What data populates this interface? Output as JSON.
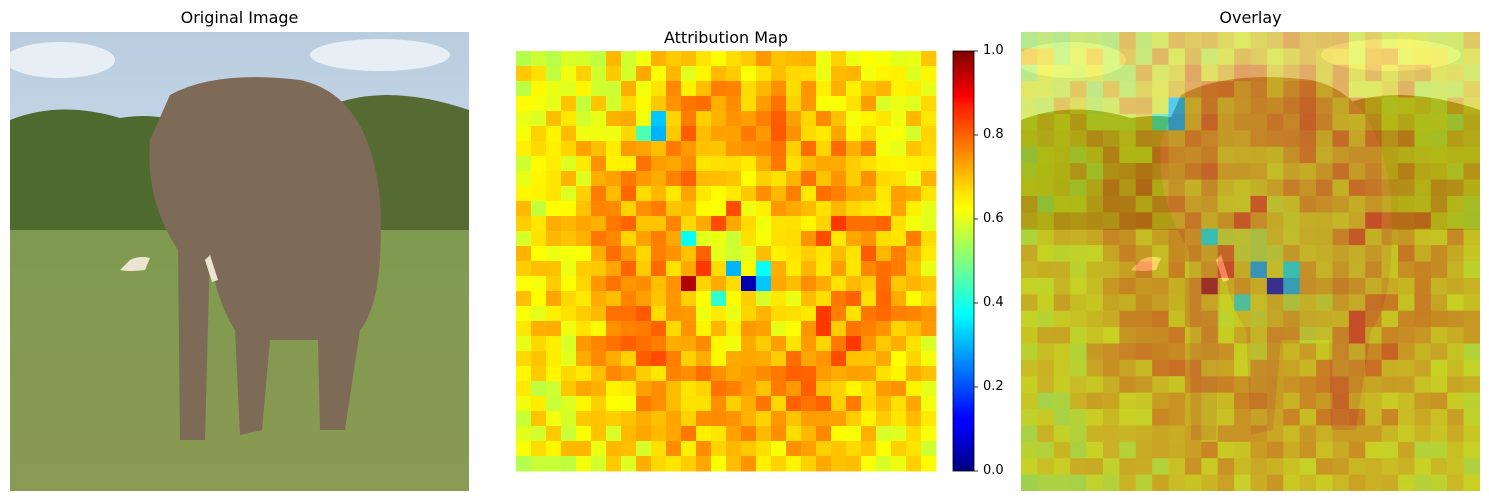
{
  "panels": {
    "original_title": "Original Image",
    "attribution_title": "Attribution Map",
    "overlay_title": "Overlay"
  },
  "chart_data": {
    "type": "heatmap",
    "title": "Attribution Map",
    "colormap": "jet",
    "colorbar": {
      "vmin": 0.0,
      "vmax": 1.0,
      "ticks": [
        "0.0",
        "0.2",
        "0.4",
        "0.6",
        "0.8",
        "1.0"
      ]
    },
    "grid_size": [
      28,
      28
    ],
    "hotspots": [
      {
        "row": 15,
        "col": 11,
        "value": 0.95
      },
      {
        "row": 14,
        "col": 12,
        "value": 0.82
      },
      {
        "row": 13,
        "col": 12,
        "value": 0.78
      },
      {
        "row": 11,
        "col": 13,
        "value": 0.8
      },
      {
        "row": 10,
        "col": 14,
        "value": 0.8
      },
      {
        "row": 15,
        "col": 15,
        "value": 0.05
      },
      {
        "row": 14,
        "col": 14,
        "value": 0.3
      },
      {
        "row": 15,
        "col": 16,
        "value": 0.32
      },
      {
        "row": 14,
        "col": 16,
        "value": 0.38
      },
      {
        "row": 16,
        "col": 13,
        "value": 0.42
      },
      {
        "row": 12,
        "col": 11,
        "value": 0.38
      },
      {
        "row": 4,
        "col": 9,
        "value": 0.32
      },
      {
        "row": 5,
        "col": 9,
        "value": 0.3
      },
      {
        "row": 5,
        "col": 8,
        "value": 0.45
      },
      {
        "row": 11,
        "col": 21,
        "value": 0.82
      },
      {
        "row": 12,
        "col": 20,
        "value": 0.8
      },
      {
        "row": 17,
        "col": 20,
        "value": 0.82
      },
      {
        "row": 18,
        "col": 20,
        "value": 0.82
      },
      {
        "row": 20,
        "col": 21,
        "value": 0.8
      },
      {
        "row": 19,
        "col": 22,
        "value": 0.82
      },
      {
        "row": 18,
        "col": 9,
        "value": 0.78
      },
      {
        "row": 20,
        "col": 9,
        "value": 0.8
      },
      {
        "row": 23,
        "col": 18,
        "value": 0.78
      },
      {
        "row": 21,
        "col": 18,
        "value": 0.78
      },
      {
        "row": 3,
        "col": 11,
        "value": 0.76
      },
      {
        "row": 4,
        "col": 16,
        "value": 0.75
      }
    ],
    "baseline_value": 0.62,
    "xlabel": "",
    "ylabel": ""
  }
}
